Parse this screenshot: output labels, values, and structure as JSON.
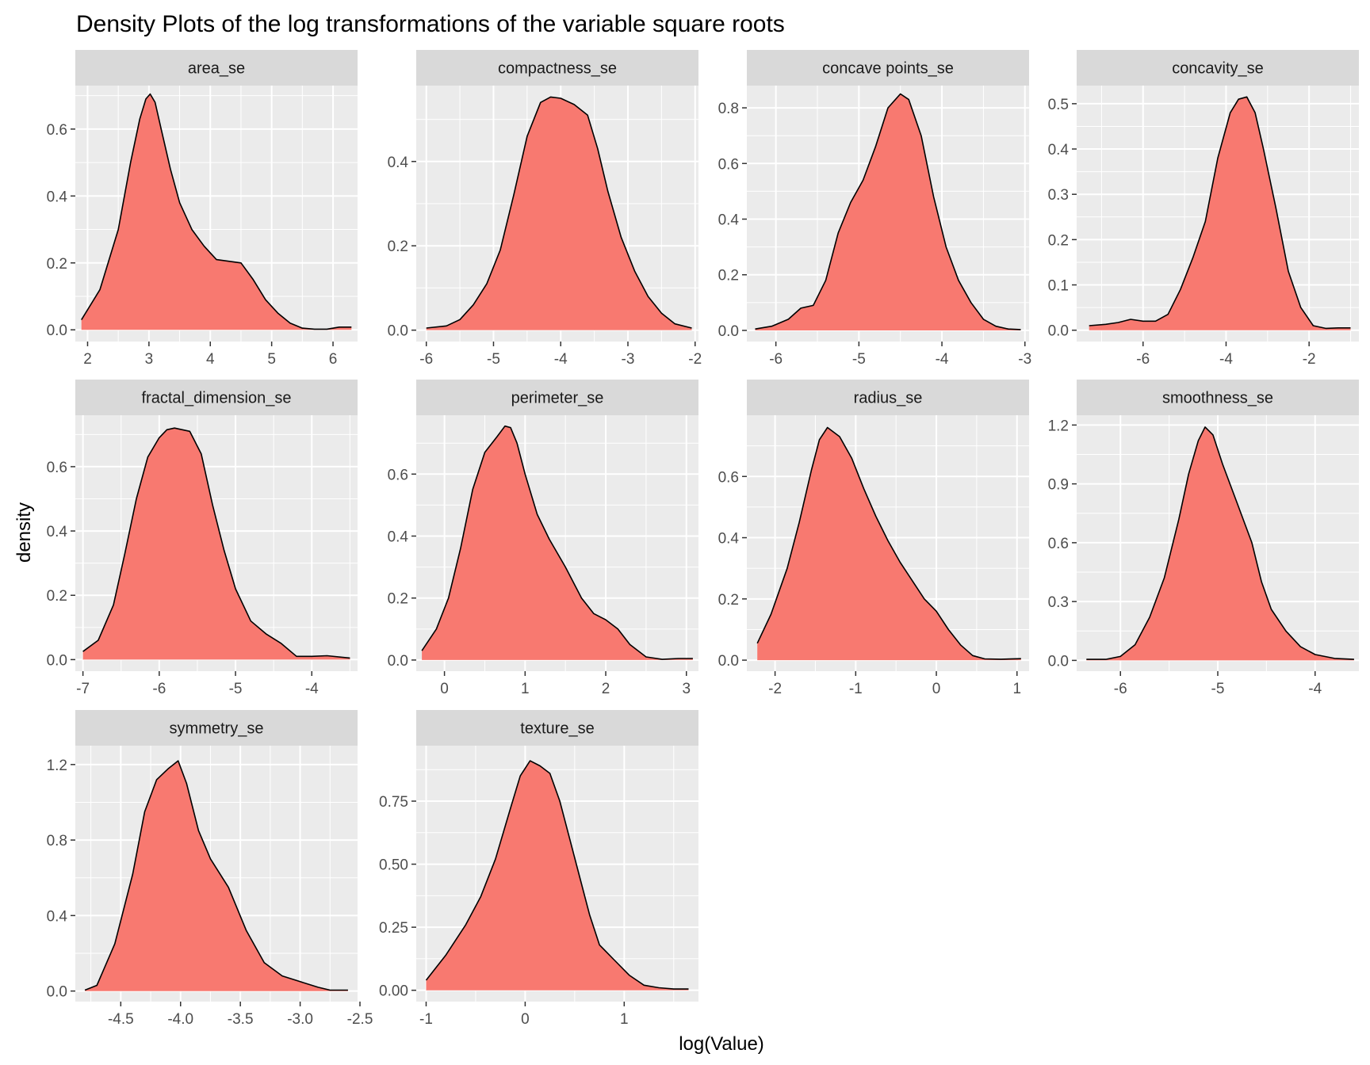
{
  "chart_data": {
    "type": "area",
    "title": "Density Plots of the log transformations of the variable square roots",
    "xlabel": "log(Value)",
    "ylabel": "density",
    "grid": true,
    "fill_color": "#F8766D",
    "panel_background": "#EBEBEB",
    "strip_background": "#D9D9D9",
    "outline_color": "#000000",
    "panels": [
      {
        "name": "area_se",
        "xlim": [
          1.8,
          6.4
        ],
        "ylim": [
          -0.035,
          0.73
        ],
        "xticks": [
          2,
          3,
          4,
          5,
          6
        ],
        "yticks": [
          0.0,
          0.2,
          0.4,
          0.6
        ],
        "ytick_labels": [
          "0.0",
          "0.2",
          "0.4",
          "0.6"
        ],
        "x": [
          1.9,
          2.2,
          2.5,
          2.7,
          2.85,
          2.95,
          3.02,
          3.1,
          3.2,
          3.35,
          3.5,
          3.7,
          3.9,
          4.1,
          4.3,
          4.5,
          4.7,
          4.9,
          5.1,
          5.3,
          5.5,
          5.7,
          5.9,
          6.1,
          6.3
        ],
        "y": [
          0.03,
          0.12,
          0.3,
          0.5,
          0.63,
          0.69,
          0.705,
          0.68,
          0.6,
          0.48,
          0.38,
          0.3,
          0.25,
          0.21,
          0.205,
          0.2,
          0.15,
          0.09,
          0.05,
          0.02,
          0.005,
          0.002,
          0.002,
          0.008,
          0.008
        ]
      },
      {
        "name": "compactness_se",
        "xlim": [
          -6.15,
          -1.95
        ],
        "ylim": [
          -0.027,
          0.58
        ],
        "xticks": [
          -6,
          -5,
          -4,
          -3,
          -2
        ],
        "yticks": [
          0.0,
          0.2,
          0.4
        ],
        "ytick_labels": [
          "0.0",
          "0.2",
          "0.4"
        ],
        "x": [
          -6.0,
          -5.7,
          -5.5,
          -5.3,
          -5.1,
          -4.9,
          -4.7,
          -4.5,
          -4.3,
          -4.15,
          -4.0,
          -3.8,
          -3.6,
          -3.45,
          -3.3,
          -3.1,
          -2.9,
          -2.7,
          -2.5,
          -2.3,
          -2.05
        ],
        "y": [
          0.005,
          0.01,
          0.025,
          0.06,
          0.11,
          0.19,
          0.32,
          0.46,
          0.54,
          0.553,
          0.55,
          0.535,
          0.51,
          0.43,
          0.33,
          0.22,
          0.14,
          0.08,
          0.04,
          0.015,
          0.005
        ]
      },
      {
        "name": "concave points_se",
        "xlim": [
          -6.35,
          -2.95
        ],
        "ylim": [
          -0.04,
          0.88
        ],
        "xticks": [
          -6,
          -5,
          -4,
          -3
        ],
        "yticks": [
          0.0,
          0.2,
          0.4,
          0.6,
          0.8
        ],
        "ytick_labels": [
          "0.0",
          "0.2",
          "0.4",
          "0.6",
          "0.8"
        ],
        "x": [
          -6.25,
          -6.05,
          -5.85,
          -5.7,
          -5.55,
          -5.4,
          -5.25,
          -5.1,
          -4.95,
          -4.8,
          -4.65,
          -4.5,
          -4.4,
          -4.25,
          -4.1,
          -3.95,
          -3.8,
          -3.65,
          -3.5,
          -3.35,
          -3.2,
          -3.05
        ],
        "y": [
          0.005,
          0.015,
          0.04,
          0.08,
          0.09,
          0.18,
          0.35,
          0.46,
          0.54,
          0.66,
          0.8,
          0.85,
          0.83,
          0.7,
          0.48,
          0.3,
          0.18,
          0.1,
          0.04,
          0.015,
          0.005,
          0.003
        ]
      },
      {
        "name": "concavity_se",
        "xlim": [
          -7.6,
          -0.8
        ],
        "ylim": [
          -0.025,
          0.54
        ],
        "xticks": [
          -6,
          -4,
          -2
        ],
        "yticks": [
          0.0,
          0.1,
          0.2,
          0.3,
          0.4,
          0.5
        ],
        "ytick_labels": [
          "0.0",
          "0.1",
          "0.2",
          "0.3",
          "0.4",
          "0.5"
        ],
        "x": [
          -7.3,
          -6.9,
          -6.6,
          -6.3,
          -6.0,
          -5.7,
          -5.4,
          -5.1,
          -4.8,
          -4.5,
          -4.2,
          -3.9,
          -3.7,
          -3.5,
          -3.3,
          -3.1,
          -2.8,
          -2.5,
          -2.2,
          -1.9,
          -1.6,
          -1.3,
          -1.0
        ],
        "y": [
          0.01,
          0.013,
          0.017,
          0.024,
          0.02,
          0.02,
          0.035,
          0.09,
          0.16,
          0.24,
          0.38,
          0.48,
          0.51,
          0.515,
          0.48,
          0.4,
          0.27,
          0.13,
          0.05,
          0.01,
          0.004,
          0.005,
          0.005
        ]
      },
      {
        "name": "fractal_dimension_se",
        "xlim": [
          -7.1,
          -3.4
        ],
        "ylim": [
          -0.036,
          0.76
        ],
        "xticks": [
          -7,
          -6,
          -5,
          -4
        ],
        "yticks": [
          0.0,
          0.2,
          0.4,
          0.6
        ],
        "ytick_labels": [
          "0.0",
          "0.2",
          "0.4",
          "0.6"
        ],
        "x": [
          -7.0,
          -6.8,
          -6.6,
          -6.45,
          -6.3,
          -6.15,
          -6.0,
          -5.9,
          -5.8,
          -5.6,
          -5.45,
          -5.3,
          -5.15,
          -5.0,
          -4.8,
          -4.6,
          -4.4,
          -4.2,
          -4.0,
          -3.8,
          -3.5
        ],
        "y": [
          0.025,
          0.06,
          0.17,
          0.33,
          0.5,
          0.63,
          0.69,
          0.715,
          0.72,
          0.71,
          0.64,
          0.48,
          0.34,
          0.22,
          0.12,
          0.08,
          0.05,
          0.01,
          0.01,
          0.012,
          0.005
        ]
      },
      {
        "name": "perimeter_se",
        "xlim": [
          -0.35,
          3.15
        ],
        "ylim": [
          -0.036,
          0.79
        ],
        "xticks": [
          0,
          1,
          2,
          3
        ],
        "yticks": [
          0.0,
          0.2,
          0.4,
          0.6
        ],
        "ytick_labels": [
          "0.0",
          "0.2",
          "0.4",
          "0.6"
        ],
        "x": [
          -0.28,
          -0.1,
          0.05,
          0.2,
          0.35,
          0.5,
          0.65,
          0.75,
          0.82,
          0.9,
          1.0,
          1.15,
          1.3,
          1.5,
          1.7,
          1.85,
          2.0,
          2.15,
          2.3,
          2.5,
          2.7,
          2.9,
          3.08
        ],
        "y": [
          0.03,
          0.1,
          0.2,
          0.36,
          0.55,
          0.67,
          0.72,
          0.755,
          0.75,
          0.7,
          0.6,
          0.47,
          0.39,
          0.3,
          0.2,
          0.15,
          0.13,
          0.1,
          0.05,
          0.01,
          0.002,
          0.005,
          0.005
        ]
      },
      {
        "name": "radius_se",
        "xlim": [
          -2.35,
          1.15
        ],
        "ylim": [
          -0.036,
          0.8
        ],
        "xticks": [
          -2,
          -1,
          0,
          1
        ],
        "yticks": [
          0.0,
          0.2,
          0.4,
          0.6
        ],
        "ytick_labels": [
          "0.0",
          "0.2",
          "0.4",
          "0.6"
        ],
        "x": [
          -2.22,
          -2.05,
          -1.85,
          -1.7,
          -1.55,
          -1.45,
          -1.35,
          -1.2,
          -1.05,
          -0.9,
          -0.75,
          -0.6,
          -0.45,
          -0.3,
          -0.15,
          0.0,
          0.15,
          0.3,
          0.45,
          0.6,
          0.8,
          1.05
        ],
        "y": [
          0.055,
          0.15,
          0.3,
          0.45,
          0.62,
          0.72,
          0.76,
          0.73,
          0.66,
          0.56,
          0.47,
          0.39,
          0.32,
          0.26,
          0.2,
          0.16,
          0.1,
          0.05,
          0.015,
          0.004,
          0.003,
          0.005
        ]
      },
      {
        "name": "smoothness_se",
        "xlim": [
          -6.45,
          -3.55
        ],
        "ylim": [
          -0.055,
          1.25
        ],
        "xticks": [
          -6,
          -5,
          -4
        ],
        "yticks": [
          0.0,
          0.3,
          0.6,
          0.9,
          1.2
        ],
        "ytick_labels": [
          "0.0",
          "0.3",
          "0.6",
          "0.9",
          "1.2"
        ],
        "x": [
          -6.35,
          -6.15,
          -6.0,
          -5.85,
          -5.7,
          -5.55,
          -5.4,
          -5.3,
          -5.2,
          -5.13,
          -5.05,
          -4.95,
          -4.8,
          -4.65,
          -4.55,
          -4.45,
          -4.3,
          -4.15,
          -4.0,
          -3.8,
          -3.6
        ],
        "y": [
          0.005,
          0.005,
          0.02,
          0.08,
          0.22,
          0.42,
          0.72,
          0.95,
          1.12,
          1.19,
          1.15,
          1.0,
          0.8,
          0.6,
          0.4,
          0.26,
          0.15,
          0.07,
          0.03,
          0.01,
          0.005
        ]
      },
      {
        "name": "symmetry_se",
        "xlim": [
          -4.88,
          -2.52
        ],
        "ylim": [
          -0.056,
          1.3
        ],
        "xticks": [
          -4.5,
          -4.0,
          -3.5,
          -3.0,
          -2.5
        ],
        "xtick_labels": [
          "-4.5",
          "-4.0",
          "-3.5",
          "-3.0",
          "-2.5"
        ],
        "yticks": [
          0.0,
          0.4,
          0.8,
          1.2
        ],
        "ytick_labels": [
          "0.0",
          "0.4",
          "0.8",
          "1.2"
        ],
        "x": [
          -4.8,
          -4.7,
          -4.55,
          -4.4,
          -4.3,
          -4.2,
          -4.1,
          -4.02,
          -3.95,
          -3.85,
          -3.75,
          -3.6,
          -3.45,
          -3.3,
          -3.15,
          -3.0,
          -2.85,
          -2.75,
          -2.6
        ],
        "y": [
          0.005,
          0.03,
          0.25,
          0.62,
          0.95,
          1.12,
          1.18,
          1.22,
          1.1,
          0.85,
          0.7,
          0.55,
          0.32,
          0.15,
          0.08,
          0.05,
          0.02,
          0.005,
          0.005
        ]
      },
      {
        "name": "texture_se",
        "xlim": [
          -1.1,
          1.75
        ],
        "ylim": [
          -0.045,
          0.97
        ],
        "xticks": [
          -1,
          0,
          1
        ],
        "yticks": [
          0.0,
          0.25,
          0.5,
          0.75
        ],
        "ytick_labels": [
          "0.00",
          "0.25",
          "0.50",
          "0.75"
        ],
        "x": [
          -1.0,
          -0.8,
          -0.6,
          -0.45,
          -0.3,
          -0.15,
          -0.05,
          0.05,
          0.15,
          0.25,
          0.35,
          0.45,
          0.55,
          0.65,
          0.75,
          0.9,
          1.05,
          1.2,
          1.35,
          1.5,
          1.65
        ],
        "y": [
          0.04,
          0.14,
          0.26,
          0.37,
          0.52,
          0.72,
          0.85,
          0.91,
          0.89,
          0.86,
          0.75,
          0.6,
          0.45,
          0.3,
          0.18,
          0.12,
          0.06,
          0.02,
          0.01,
          0.005,
          0.005
        ]
      }
    ]
  }
}
